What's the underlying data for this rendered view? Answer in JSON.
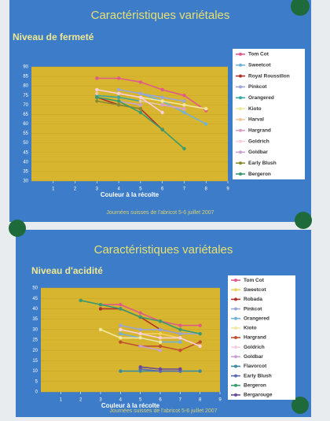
{
  "chart_data": [
    {
      "type": "line",
      "title": "Caractéristiques variétales",
      "subtitle": "Niveau de fermeté",
      "x_label": "Couleur à la récolte",
      "footer": "Journées suisses de l'abricot 5-6 juillet 2007",
      "x": [
        3,
        4,
        5,
        6,
        7,
        8
      ],
      "xlim": [
        0,
        9
      ],
      "xticks": [
        1,
        2,
        3,
        4,
        5,
        6,
        7,
        8,
        9
      ],
      "ylim": [
        30,
        90
      ],
      "yticks": [
        30,
        35,
        40,
        45,
        50,
        55,
        60,
        65,
        70,
        75,
        80,
        85,
        90
      ],
      "grid": true,
      "series": [
        {
          "name": "Tom Cot",
          "color": "#e05a8a",
          "values": [
            84,
            84,
            82,
            78,
            75,
            67
          ]
        },
        {
          "name": "Sweetcot",
          "color": "#6fb3d9",
          "values": [
            null,
            null,
            76,
            72,
            66,
            60
          ]
        },
        {
          "name": "Royal  Roussillon",
          "color": "#b0302a",
          "values": [
            74,
            70,
            68,
            57,
            null,
            null
          ]
        },
        {
          "name": "Pinkcot",
          "color": "#9aa6d8",
          "values": [
            null,
            78,
            76,
            74,
            72,
            null
          ]
        },
        {
          "name": "Orangered",
          "color": "#3aa8a0",
          "values": [
            75,
            74,
            72,
            70,
            null,
            null
          ]
        },
        {
          "name": "Kioto",
          "color": "#f2e8a0",
          "values": [
            null,
            null,
            74,
            72,
            70,
            68
          ]
        },
        {
          "name": "Harval",
          "color": "#f0c8a0",
          "values": [
            76,
            null,
            72,
            70,
            68,
            null
          ]
        },
        {
          "name": "Hargrand",
          "color": "#d8a0c8",
          "values": [
            null,
            null,
            null,
            70,
            68,
            null
          ]
        },
        {
          "name": "Goldrich",
          "color": "#f6d0e0",
          "values": [
            78,
            76,
            74,
            66,
            null,
            null
          ]
        },
        {
          "name": "Goldbar",
          "color": "#c8a0d0",
          "values": [
            null,
            72,
            70,
            null,
            null,
            null
          ]
        },
        {
          "name": "Early Blush",
          "color": "#8a8a30",
          "values": [
            72,
            70,
            68,
            null,
            null,
            null
          ]
        },
        {
          "name": "Bergeron",
          "color": "#3a9a70",
          "values": [
            74,
            72,
            66,
            57,
            47,
            null
          ]
        }
      ]
    },
    {
      "type": "line",
      "title": "Caractéristiques variétales",
      "subtitle": "Niveau d'acidité",
      "x_label": "Couleur à la récolte",
      "footer": "Journées suisses de l'abricot 5-6 juillet 2007",
      "x": [
        2,
        3,
        4,
        5,
        6,
        7,
        8
      ],
      "xlim": [
        0,
        9
      ],
      "xticks": [
        1,
        2,
        3,
        4,
        5,
        6,
        7,
        8,
        9
      ],
      "ylim": [
        0,
        50
      ],
      "yticks": [
        0,
        5,
        10,
        15,
        20,
        25,
        30,
        35,
        40,
        45,
        50
      ],
      "grid": true,
      "series": [
        {
          "name": "Tom Cot",
          "color": "#e05a8a",
          "values": [
            null,
            42,
            42,
            38,
            34,
            32,
            32
          ]
        },
        {
          "name": "Sweetcot",
          "color": "#f0d060",
          "values": [
            null,
            null,
            30,
            28,
            28,
            26,
            null
          ]
        },
        {
          "name": "Robada",
          "color": "#b0302a",
          "values": [
            null,
            40,
            40,
            36,
            30,
            28,
            null
          ]
        },
        {
          "name": "Pinkcot",
          "color": "#9aa6d8",
          "values": [
            null,
            null,
            32,
            30,
            30,
            28,
            28
          ]
        },
        {
          "name": "Orangered",
          "color": "#6fb3d9",
          "values": [
            null,
            null,
            28,
            26,
            24,
            24,
            null
          ]
        },
        {
          "name": "Kioto",
          "color": "#f2e8a0",
          "values": [
            null,
            30,
            26,
            26,
            24,
            null,
            null
          ]
        },
        {
          "name": "Hargrand",
          "color": "#c05030",
          "values": [
            null,
            null,
            24,
            22,
            22,
            20,
            24
          ]
        },
        {
          "name": "Goldrich",
          "color": "#f6d0e0",
          "values": [
            null,
            null,
            30,
            28,
            26,
            26,
            22
          ]
        },
        {
          "name": "Goldbar",
          "color": "#c8a0d0",
          "values": [
            null,
            null,
            null,
            22,
            20,
            null,
            null
          ]
        },
        {
          "name": "Flavorcot",
          "color": "#3a8aa0",
          "values": [
            null,
            null,
            10,
            10,
            10,
            10,
            10
          ]
        },
        {
          "name": "Early Blush",
          "color": "#5a6ab0",
          "values": [
            null,
            null,
            null,
            11,
            10,
            10,
            null
          ]
        },
        {
          "name": "Bergeron",
          "color": "#3a9a70",
          "values": [
            44,
            42,
            40,
            36,
            34,
            30,
            28
          ]
        },
        {
          "name": "Bergarouge",
          "color": "#6a4a9a",
          "values": [
            null,
            null,
            null,
            12,
            11,
            11,
            null
          ]
        }
      ]
    }
  ]
}
